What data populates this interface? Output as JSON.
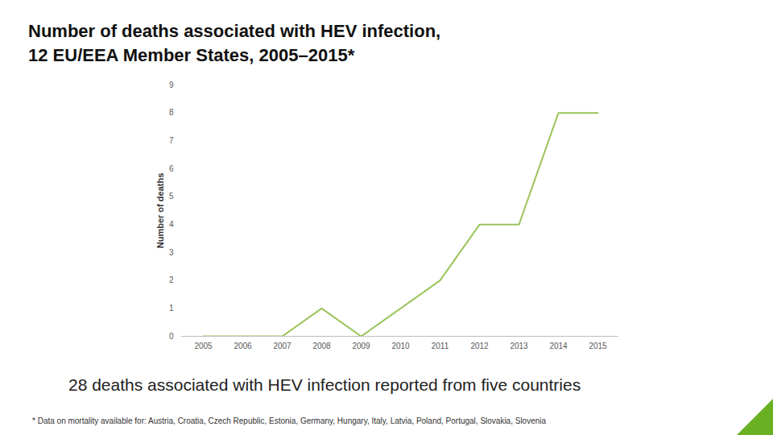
{
  "chart_data": {
    "type": "line",
    "title": "Number of deaths associated with HEV infection, 12 EU/EEA Member States, 2005–2015*",
    "categories": [
      "2005",
      "2006",
      "2007",
      "2008",
      "2009",
      "2010",
      "2011",
      "2012",
      "2013",
      "2014",
      "2015"
    ],
    "values": [
      0,
      0,
      0,
      1,
      0,
      1,
      2,
      4,
      4,
      8,
      8
    ],
    "color": "#9bc45a",
    "y_label": "Number of deaths",
    "ylim": [
      0,
      9
    ],
    "yticks": [
      0,
      1,
      2,
      3,
      4,
      5,
      6,
      7,
      8,
      9
    ],
    "grid": false,
    "caption": "28 deaths associated with HEV infection reported from five countries",
    "footnote": "* Data on mortality available for: Austria, Croatia, Czech Republic, Estonia, Germany, Hungary, Italy, Latvia, Poland, Portugal, Slovakia, Slovenia"
  }
}
